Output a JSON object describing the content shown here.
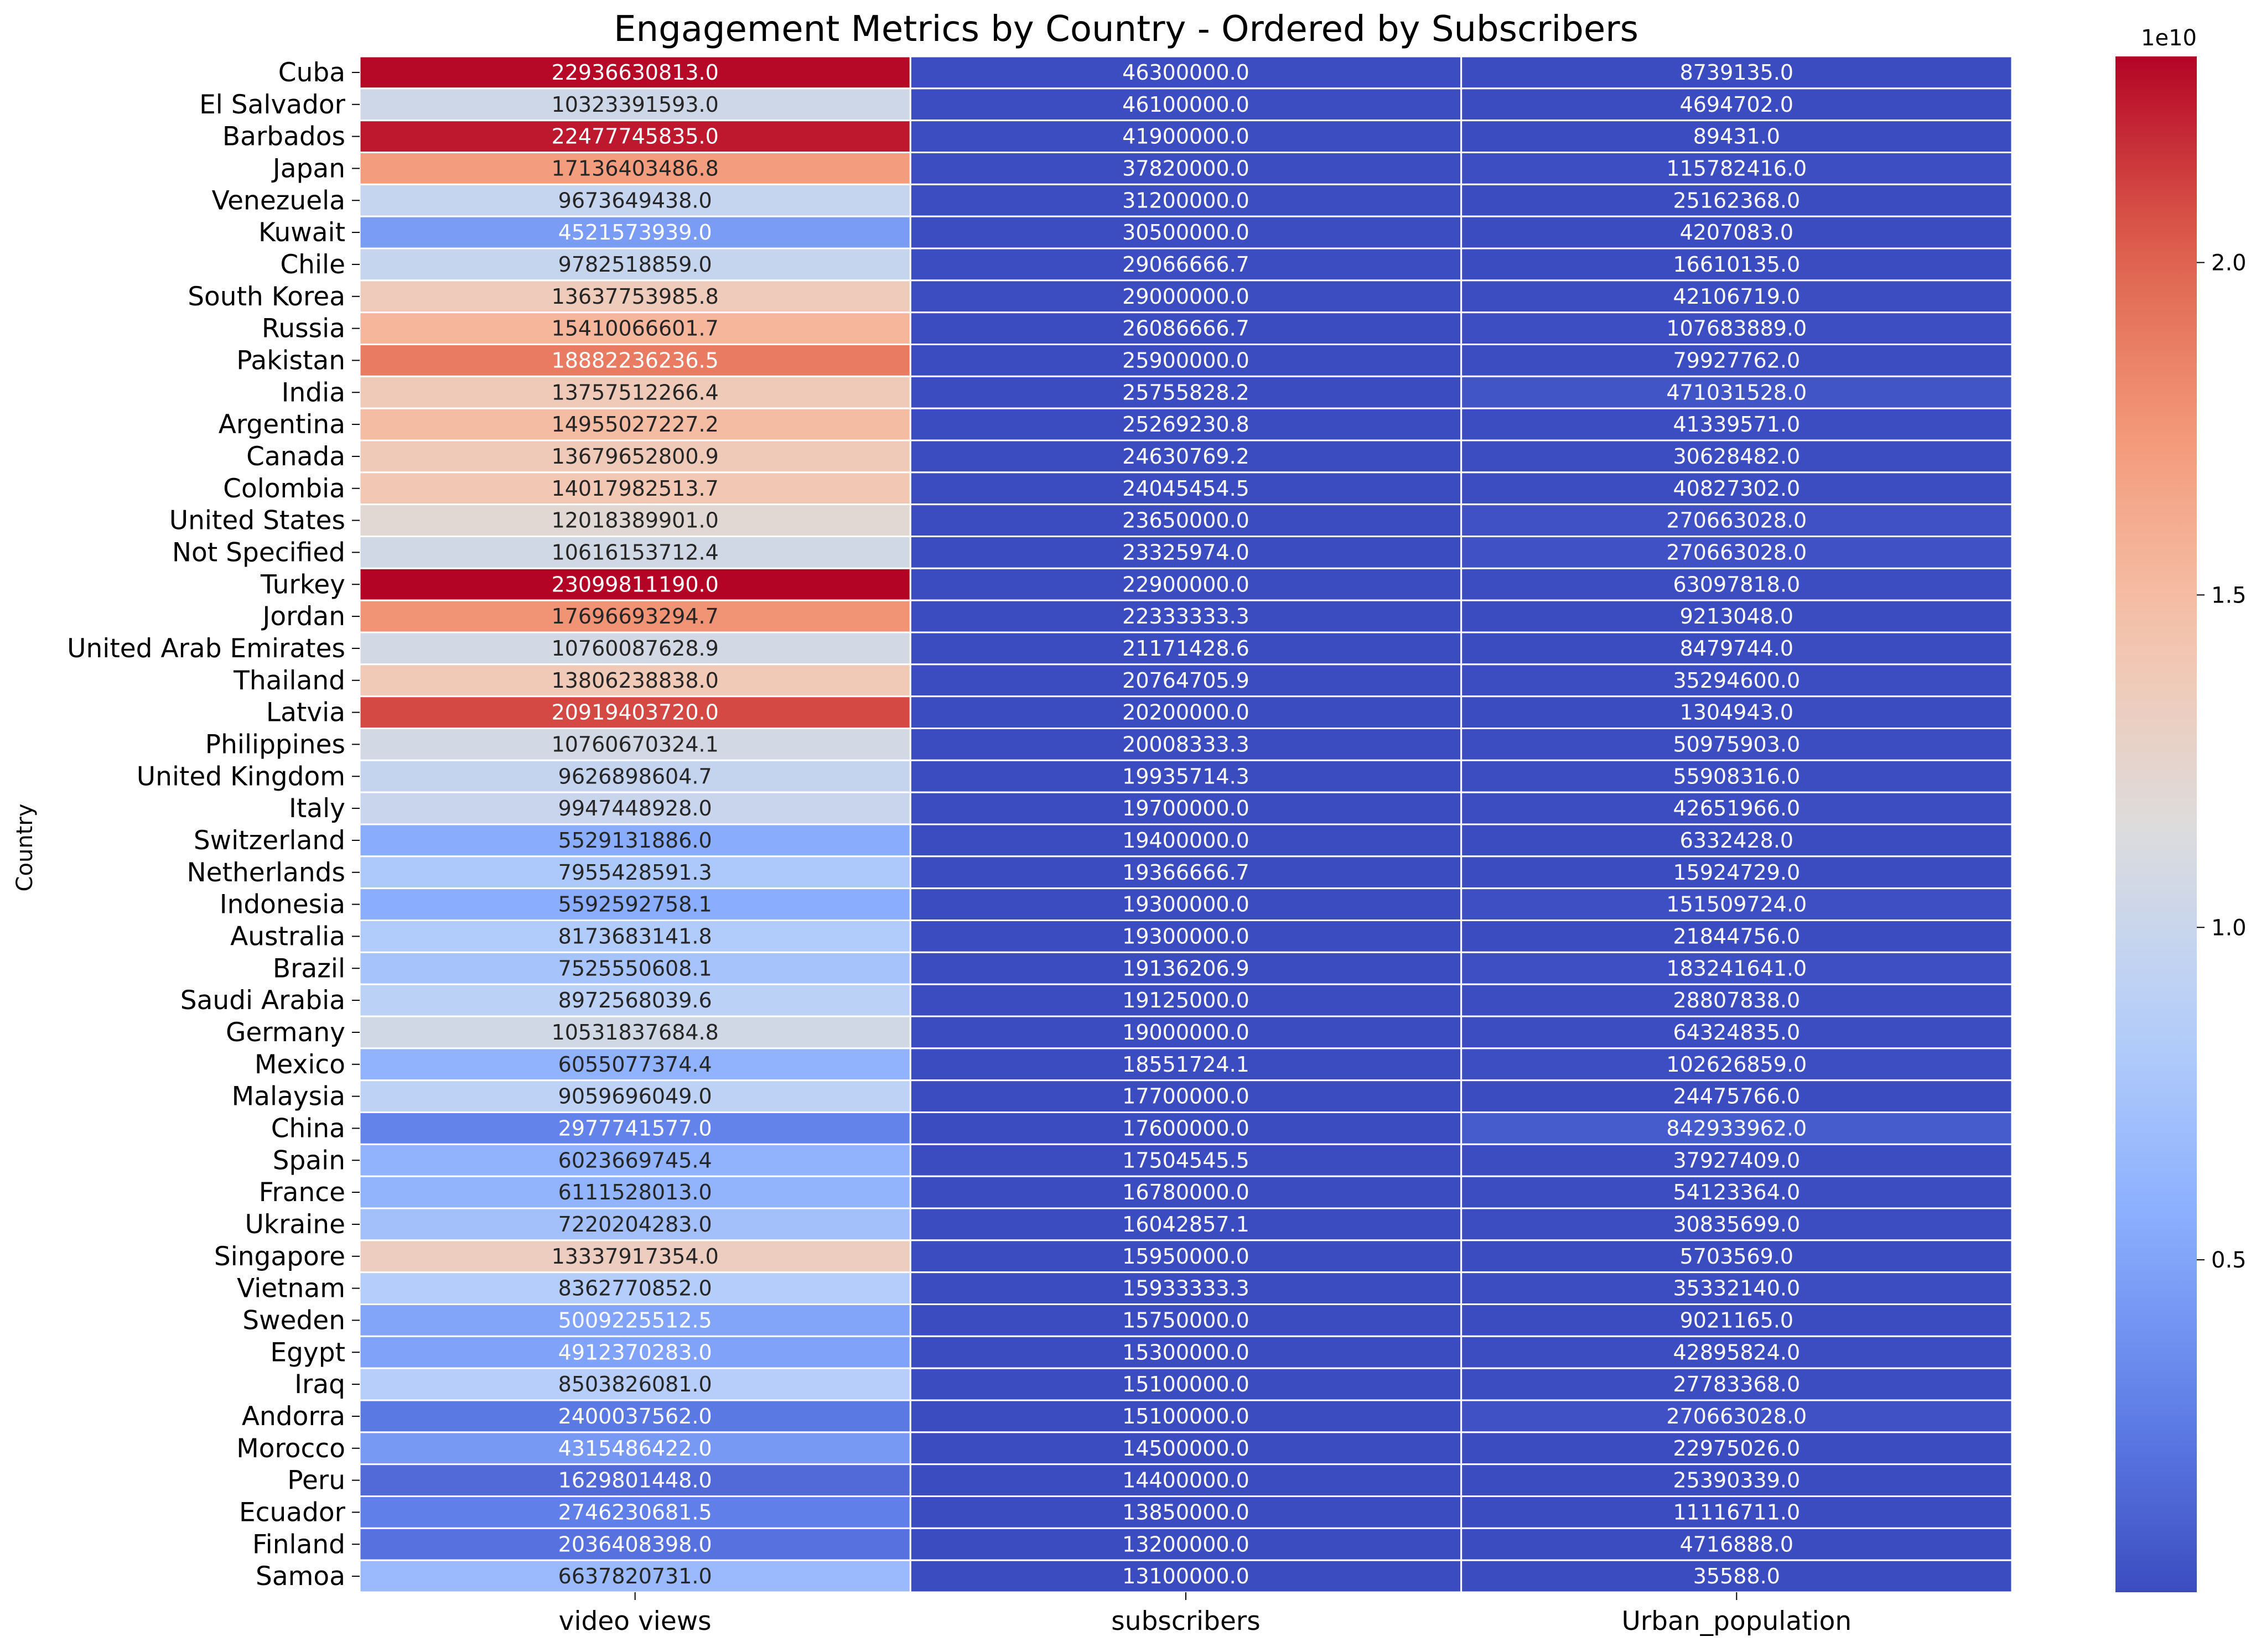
{
  "chart_data": {
    "type": "heatmap",
    "title": "Engagement Metrics by Country - Ordered by Subscribers",
    "xlabel": "",
    "ylabel": "Country",
    "colormap": "coolwarm",
    "colorbar": {
      "min": 0.0,
      "max": 23099811190.0,
      "offset_label": "1e10",
      "ticks": [
        0.5,
        1.0,
        1.5,
        2.0
      ],
      "tick_labels": [
        "0.5",
        "1.0",
        "1.5",
        "2.0"
      ]
    },
    "columns": [
      "video views",
      "subscribers",
      "Urban_population"
    ],
    "rows": [
      {
        "country": "Cuba",
        "values": [
          22936630813.0,
          46300000.0,
          8739135.0
        ],
        "labels": [
          "22936630813.0",
          "46300000.0",
          "8739135.0"
        ]
      },
      {
        "country": "El Salvador",
        "values": [
          10323391593.0,
          46100000.0,
          4694702.0
        ],
        "labels": [
          "10323391593.0",
          "46100000.0",
          "4694702.0"
        ]
      },
      {
        "country": "Barbados",
        "values": [
          22477745835.0,
          41900000.0,
          89431.0
        ],
        "labels": [
          "22477745835.0",
          "41900000.0",
          "89431.0"
        ]
      },
      {
        "country": "Japan",
        "values": [
          17136403486.8,
          37820000.0,
          115782416.0
        ],
        "labels": [
          "17136403486.8",
          "37820000.0",
          "115782416.0"
        ]
      },
      {
        "country": "Venezuela",
        "values": [
          9673649438.0,
          31200000.0,
          25162368.0
        ],
        "labels": [
          "9673649438.0",
          "31200000.0",
          "25162368.0"
        ]
      },
      {
        "country": "Kuwait",
        "values": [
          4521573939.0,
          30500000.0,
          4207083.0
        ],
        "labels": [
          "4521573939.0",
          "30500000.0",
          "4207083.0"
        ]
      },
      {
        "country": "Chile",
        "values": [
          9782518859.0,
          29066666.7,
          16610135.0
        ],
        "labels": [
          "9782518859.0",
          "29066666.7",
          "16610135.0"
        ]
      },
      {
        "country": "South Korea",
        "values": [
          13637753985.8,
          29000000.0,
          42106719.0
        ],
        "labels": [
          "13637753985.8",
          "29000000.0",
          "42106719.0"
        ]
      },
      {
        "country": "Russia",
        "values": [
          15410066601.7,
          26086666.7,
          107683889.0
        ],
        "labels": [
          "15410066601.7",
          "26086666.7",
          "107683889.0"
        ]
      },
      {
        "country": "Pakistan",
        "values": [
          18882236236.5,
          25900000.0,
          79927762.0
        ],
        "labels": [
          "18882236236.5",
          "25900000.0",
          "79927762.0"
        ]
      },
      {
        "country": "India",
        "values": [
          13757512266.4,
          25755828.2,
          471031528.0
        ],
        "labels": [
          "13757512266.4",
          "25755828.2",
          "471031528.0"
        ]
      },
      {
        "country": "Argentina",
        "values": [
          14955027227.2,
          25269230.8,
          41339571.0
        ],
        "labels": [
          "14955027227.2",
          "25269230.8",
          "41339571.0"
        ]
      },
      {
        "country": "Canada",
        "values": [
          13679652800.9,
          24630769.2,
          30628482.0
        ],
        "labels": [
          "13679652800.9",
          "24630769.2",
          "30628482.0"
        ]
      },
      {
        "country": "Colombia",
        "values": [
          14017982513.7,
          24045454.5,
          40827302.0
        ],
        "labels": [
          "14017982513.7",
          "24045454.5",
          "40827302.0"
        ]
      },
      {
        "country": "United States",
        "values": [
          12018389901.0,
          23650000.0,
          270663028.0
        ],
        "labels": [
          "12018389901.0",
          "23650000.0",
          "270663028.0"
        ]
      },
      {
        "country": "Not Specified",
        "values": [
          10616153712.4,
          23325974.0,
          270663028.0
        ],
        "labels": [
          "10616153712.4",
          "23325974.0",
          "270663028.0"
        ]
      },
      {
        "country": "Turkey",
        "values": [
          23099811190.0,
          22900000.0,
          63097818.0
        ],
        "labels": [
          "23099811190.0",
          "22900000.0",
          "63097818.0"
        ]
      },
      {
        "country": "Jordan",
        "values": [
          17696693294.7,
          22333333.3,
          9213048.0
        ],
        "labels": [
          "17696693294.7",
          "22333333.3",
          "9213048.0"
        ]
      },
      {
        "country": "United Arab Emirates",
        "values": [
          10760087628.9,
          21171428.6,
          8479744.0
        ],
        "labels": [
          "10760087628.9",
          "21171428.6",
          "8479744.0"
        ]
      },
      {
        "country": "Thailand",
        "values": [
          13806238838.0,
          20764705.9,
          35294600.0
        ],
        "labels": [
          "13806238838.0",
          "20764705.9",
          "35294600.0"
        ]
      },
      {
        "country": "Latvia",
        "values": [
          20919403720.0,
          20200000.0,
          1304943.0
        ],
        "labels": [
          "20919403720.0",
          "20200000.0",
          "1304943.0"
        ]
      },
      {
        "country": "Philippines",
        "values": [
          10760670324.1,
          20008333.3,
          50975903.0
        ],
        "labels": [
          "10760670324.1",
          "20008333.3",
          "50975903.0"
        ]
      },
      {
        "country": "United Kingdom",
        "values": [
          9626898604.7,
          19935714.3,
          55908316.0
        ],
        "labels": [
          "9626898604.7",
          "19935714.3",
          "55908316.0"
        ]
      },
      {
        "country": "Italy",
        "values": [
          9947448928.0,
          19700000.0,
          42651966.0
        ],
        "labels": [
          "9947448928.0",
          "19700000.0",
          "42651966.0"
        ]
      },
      {
        "country": "Switzerland",
        "values": [
          5529131886.0,
          19400000.0,
          6332428.0
        ],
        "labels": [
          "5529131886.0",
          "19400000.0",
          "6332428.0"
        ]
      },
      {
        "country": "Netherlands",
        "values": [
          7955428591.3,
          19366666.7,
          15924729.0
        ],
        "labels": [
          "7955428591.3",
          "19366666.7",
          "15924729.0"
        ]
      },
      {
        "country": "Indonesia",
        "values": [
          5592592758.1,
          19300000.0,
          151509724.0
        ],
        "labels": [
          "5592592758.1",
          "19300000.0",
          "151509724.0"
        ]
      },
      {
        "country": "Australia",
        "values": [
          8173683141.8,
          19300000.0,
          21844756.0
        ],
        "labels": [
          "8173683141.8",
          "19300000.0",
          "21844756.0"
        ]
      },
      {
        "country": "Brazil",
        "values": [
          7525550608.1,
          19136206.9,
          183241641.0
        ],
        "labels": [
          "7525550608.1",
          "19136206.9",
          "183241641.0"
        ]
      },
      {
        "country": "Saudi Arabia",
        "values": [
          8972568039.6,
          19125000.0,
          28807838.0
        ],
        "labels": [
          "8972568039.6",
          "19125000.0",
          "28807838.0"
        ]
      },
      {
        "country": "Germany",
        "values": [
          10531837684.8,
          19000000.0,
          64324835.0
        ],
        "labels": [
          "10531837684.8",
          "19000000.0",
          "64324835.0"
        ]
      },
      {
        "country": "Mexico",
        "values": [
          6055077374.4,
          18551724.1,
          102626859.0
        ],
        "labels": [
          "6055077374.4",
          "18551724.1",
          "102626859.0"
        ]
      },
      {
        "country": "Malaysia",
        "values": [
          9059696049.0,
          17700000.0,
          24475766.0
        ],
        "labels": [
          "9059696049.0",
          "17700000.0",
          "24475766.0"
        ]
      },
      {
        "country": "China",
        "values": [
          2977741577.0,
          17600000.0,
          842933962.0
        ],
        "labels": [
          "2977741577.0",
          "17600000.0",
          "842933962.0"
        ]
      },
      {
        "country": "Spain",
        "values": [
          6023669745.4,
          17504545.5,
          37927409.0
        ],
        "labels": [
          "6023669745.4",
          "17504545.5",
          "37927409.0"
        ]
      },
      {
        "country": "France",
        "values": [
          6111528013.0,
          16780000.0,
          54123364.0
        ],
        "labels": [
          "6111528013.0",
          "16780000.0",
          "54123364.0"
        ]
      },
      {
        "country": "Ukraine",
        "values": [
          7220204283.0,
          16042857.1,
          30835699.0
        ],
        "labels": [
          "7220204283.0",
          "16042857.1",
          "30835699.0"
        ]
      },
      {
        "country": "Singapore",
        "values": [
          13337917354.0,
          15950000.0,
          5703569.0
        ],
        "labels": [
          "13337917354.0",
          "15950000.0",
          "5703569.0"
        ]
      },
      {
        "country": "Vietnam",
        "values": [
          8362770852.0,
          15933333.3,
          35332140.0
        ],
        "labels": [
          "8362770852.0",
          "15933333.3",
          "35332140.0"
        ]
      },
      {
        "country": "Sweden",
        "values": [
          5009225512.5,
          15750000.0,
          9021165.0
        ],
        "labels": [
          "5009225512.5",
          "15750000.0",
          "9021165.0"
        ]
      },
      {
        "country": "Egypt",
        "values": [
          4912370283.0,
          15300000.0,
          42895824.0
        ],
        "labels": [
          "4912370283.0",
          "15300000.0",
          "42895824.0"
        ]
      },
      {
        "country": "Iraq",
        "values": [
          8503826081.0,
          15100000.0,
          27783368.0
        ],
        "labels": [
          "8503826081.0",
          "15100000.0",
          "27783368.0"
        ]
      },
      {
        "country": "Andorra",
        "values": [
          2400037562.0,
          15100000.0,
          270663028.0
        ],
        "labels": [
          "2400037562.0",
          "15100000.0",
          "270663028.0"
        ]
      },
      {
        "country": "Morocco",
        "values": [
          4315486422.0,
          14500000.0,
          22975026.0
        ],
        "labels": [
          "4315486422.0",
          "14500000.0",
          "22975026.0"
        ]
      },
      {
        "country": "Peru",
        "values": [
          1629801448.0,
          14400000.0,
          25390339.0
        ],
        "labels": [
          "1629801448.0",
          "14400000.0",
          "25390339.0"
        ]
      },
      {
        "country": "Ecuador",
        "values": [
          2746230681.5,
          13850000.0,
          11116711.0
        ],
        "labels": [
          "2746230681.5",
          "13850000.0",
          "11116711.0"
        ]
      },
      {
        "country": "Finland",
        "values": [
          2036408398.0,
          13200000.0,
          4716888.0
        ],
        "labels": [
          "2036408398.0",
          "13200000.0",
          "4716888.0"
        ]
      },
      {
        "country": "Samoa",
        "values": [
          6637820731.0,
          13100000.0,
          35588.0
        ],
        "labels": [
          "6637820731.0",
          "13100000.0",
          "35588.0"
        ]
      }
    ]
  }
}
